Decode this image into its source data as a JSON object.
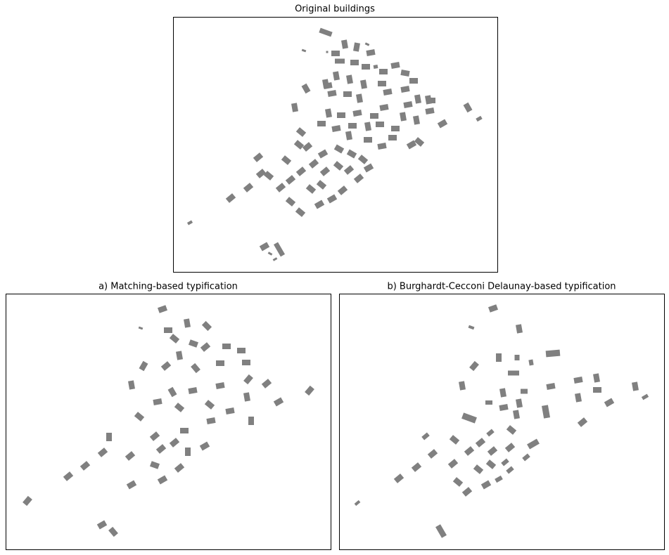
{
  "panels": [
    {
      "title": "Original buildings"
    },
    {
      "title": "a) Matching-based typification"
    },
    {
      "title": "b) Burghardt-Cecconi Delaunay-based typification"
    }
  ]
}
